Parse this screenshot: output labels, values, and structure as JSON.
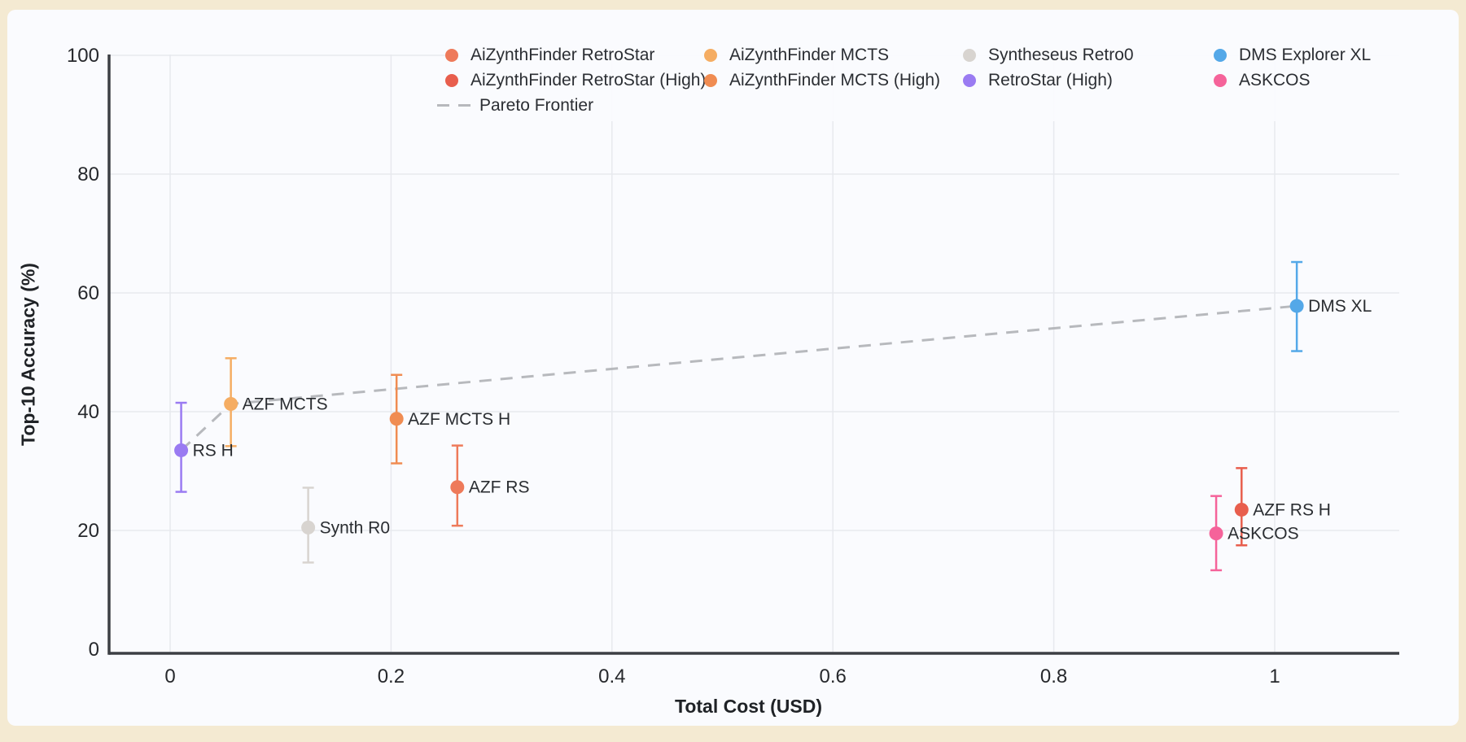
{
  "page": {
    "background_frame_color": "#f4ead2",
    "card_color": "#fafbfe"
  },
  "chart_data": {
    "type": "scatter",
    "title": "",
    "xlabel": "Total Cost (USD)",
    "ylabel": "Top-10 Accuracy (%)",
    "xlim": [
      -0.055,
      1.113
    ],
    "ylim": [
      0,
      100.7
    ],
    "grid": true,
    "legend_position": "top-inside",
    "axis_color": "#3c3f44",
    "gridline_color": "#e7e9ee",
    "tick_label_color": "#26282c",
    "point_label_color": "#2a2d31",
    "xticks": {
      "values": [
        0,
        0.2,
        0.4,
        0.6,
        0.8,
        1
      ],
      "labels": [
        "0",
        "0.2",
        "0.4",
        "0.6",
        "0.8",
        "1"
      ]
    },
    "yticks": {
      "values": [
        0,
        20,
        40,
        60,
        80,
        100
      ],
      "labels": [
        "0",
        "20",
        "40",
        "60",
        "80",
        "100"
      ]
    },
    "series": [
      {
        "legend_label": "AiZynthFinder RetroStar",
        "point_label": "AZF RS",
        "x": 0.26,
        "y": 27.3,
        "y_err_plus": 7.0,
        "y_err_minus": 6.5,
        "color": "#ee7a5a"
      },
      {
        "legend_label": "AiZynthFinder RetroStar (High)",
        "point_label": "AZF RS H",
        "x": 0.97,
        "y": 23.5,
        "y_err_plus": 7.0,
        "y_err_minus": 6.0,
        "color": "#e85e4d"
      },
      {
        "legend_label": "AiZynthFinder MCTS",
        "point_label": "AZF MCTS",
        "x": 0.055,
        "y": 41.3,
        "y_err_plus": 7.7,
        "y_err_minus": 7.1,
        "color": "#f5ad63"
      },
      {
        "legend_label": "AiZynthFinder MCTS (High)",
        "point_label": "AZF MCTS H",
        "x": 0.205,
        "y": 38.8,
        "y_err_plus": 7.4,
        "y_err_minus": 7.5,
        "color": "#f08c52"
      },
      {
        "legend_label": "Syntheseus Retro0",
        "point_label": "Synth R0",
        "x": 0.125,
        "y": 20.5,
        "y_err_plus": 6.7,
        "y_err_minus": 5.9,
        "color": "#d8d4d0"
      },
      {
        "legend_label": "RetroStar (High)",
        "point_label": "RS H",
        "x": 0.01,
        "y": 33.5,
        "y_err_plus": 8.0,
        "y_err_minus": 7.0,
        "color": "#9a7bf2"
      },
      {
        "legend_label": "DMS Explorer XL",
        "point_label": "DMS XL",
        "x": 1.02,
        "y": 57.8,
        "y_err_plus": 7.4,
        "y_err_minus": 7.6,
        "color": "#54a8e8"
      },
      {
        "legend_label": "ASKCOS",
        "point_label": "ASKCOS",
        "x": 0.947,
        "y": 19.5,
        "y_err_plus": 6.3,
        "y_err_minus": 6.2,
        "color": "#f5639a"
      }
    ],
    "pareto_frontier": {
      "legend_label": "Pareto Frontier",
      "color": "#b7b9bd",
      "style": "dashed",
      "points": [
        [
          0.01,
          33.5
        ],
        [
          0.055,
          41.3
        ],
        [
          1.02,
          57.8
        ]
      ]
    },
    "legend_columns": [
      [
        "AiZynthFinder RetroStar",
        "AiZynthFinder RetroStar (High)",
        "Pareto Frontier"
      ],
      [
        "AiZynthFinder MCTS",
        "AiZynthFinder MCTS (High)"
      ],
      [
        "Syntheseus Retro0",
        "RetroStar (High)"
      ],
      [
        "DMS Explorer XL",
        "ASKCOS"
      ]
    ]
  }
}
